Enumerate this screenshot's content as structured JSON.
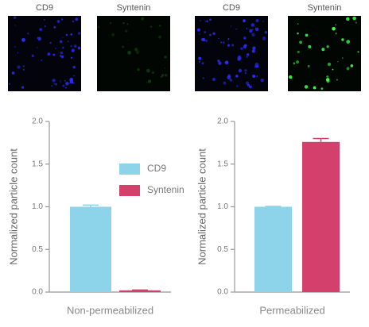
{
  "images": [
    {
      "label": "CD9"
    },
    {
      "label": "Syntenin"
    },
    {
      "label": "CD9"
    },
    {
      "label": "Syntenin"
    }
  ],
  "chart_data": [
    {
      "type": "bar",
      "ylabel": "Normalized particle count",
      "xlabel": "Non-permeabilized",
      "ylim": [
        0,
        2.0
      ],
      "yticks": [
        {
          "value": 0,
          "label": "0.0"
        },
        {
          "value": 0.5,
          "label": "0.5"
        },
        {
          "value": 1.0,
          "label": "1.0"
        },
        {
          "value": 1.5,
          "label": "1.5"
        },
        {
          "value": 2.0,
          "label": "2.0"
        }
      ],
      "series": [
        {
          "name": "CD9",
          "color": "#8dd3ea",
          "values": [
            1.0
          ],
          "errors": [
            0.02
          ]
        },
        {
          "name": "Syntenin",
          "color": "#d3406c",
          "values": [
            0.02
          ],
          "errors": [
            0.005
          ]
        }
      ],
      "legend": true
    },
    {
      "type": "bar",
      "ylabel": "Normalized particle count",
      "xlabel": "Permeabilized",
      "ylim": [
        0,
        2.0
      ],
      "yticks": [
        {
          "value": 0,
          "label": "0.0"
        },
        {
          "value": 0.5,
          "label": "0.5"
        },
        {
          "value": 1.0,
          "label": "1.0"
        },
        {
          "value": 1.5,
          "label": "1.5"
        },
        {
          "value": 2.0,
          "label": "2.0"
        }
      ],
      "series": [
        {
          "name": "CD9",
          "color": "#8dd3ea",
          "values": [
            1.0
          ],
          "errors": [
            0.005
          ]
        },
        {
          "name": "Syntenin",
          "color": "#d3406c",
          "values": [
            1.76
          ],
          "errors": [
            0.04
          ]
        }
      ],
      "legend": false
    }
  ]
}
